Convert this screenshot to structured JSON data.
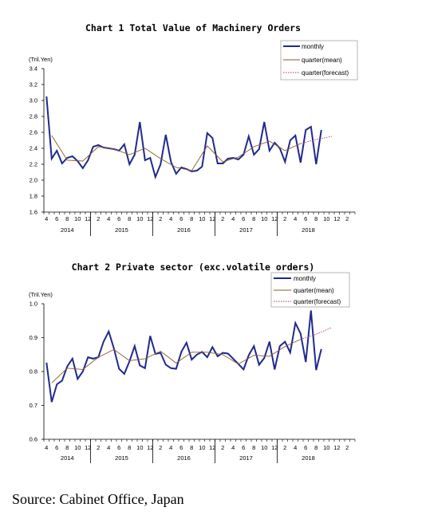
{
  "source": "Source: Cabinet Office, Japan",
  "colors": {
    "monthly": "#1f2a8c",
    "quarter_mean": "#8b5a2b",
    "quarter_forecast": "#b0306a"
  },
  "chart_data": [
    {
      "type": "line",
      "title": "Chart 1 Total Value of Machinery Orders",
      "ylabel": "(Tril.Yen)",
      "ylim": [
        1.6,
        3.4
      ],
      "yticks": [
        "1.6",
        "1.8",
        "2.0",
        "2.2",
        "2.4",
        "2.6",
        "2.8",
        "3.0",
        "3.2",
        "3.4"
      ],
      "month_ticks": [
        "4",
        "6",
        "8",
        "10",
        "12",
        "2",
        "4",
        "6",
        "8",
        "10",
        "12",
        "2",
        "4",
        "6",
        "8",
        "10",
        "12",
        "2",
        "4",
        "6",
        "8",
        "10",
        "12",
        "2",
        "4",
        "6",
        "8",
        "10",
        "12",
        "2"
      ],
      "year_labels": [
        "2014",
        "2015",
        "2016",
        "2017",
        "2018"
      ],
      "legend": [
        "monthly",
        "quarter(mean)",
        "quarter(forecast)"
      ],
      "series": [
        {
          "name": "monthly",
          "values": [
            3.05,
            2.27,
            2.37,
            2.21,
            2.28,
            2.3,
            2.24,
            2.15,
            2.25,
            2.42,
            2.44,
            2.41,
            2.4,
            2.39,
            2.37,
            2.45,
            2.2,
            2.32,
            2.73,
            2.25,
            2.28,
            2.04,
            2.2,
            2.57,
            2.23,
            2.08,
            2.16,
            2.14,
            2.11,
            2.12,
            2.17,
            2.59,
            2.53,
            2.21,
            2.21,
            2.27,
            2.28,
            2.26,
            2.32,
            2.55,
            2.32,
            2.39,
            2.73,
            2.37,
            2.47,
            2.4,
            2.23,
            2.5,
            2.56,
            2.22,
            2.63,
            2.67,
            2.2,
            2.63
          ]
        },
        {
          "name": "quarter(mean)",
          "x": [
            1,
            4,
            7,
            10,
            13,
            16,
            19,
            22,
            25,
            28,
            31,
            34,
            37,
            40,
            43,
            46,
            49
          ],
          "values": [
            2.56,
            2.25,
            2.24,
            2.42,
            2.39,
            2.32,
            2.4,
            2.27,
            2.16,
            2.12,
            2.43,
            2.23,
            2.29,
            2.42,
            2.49,
            2.37,
            2.46
          ]
        },
        {
          "name": "quarter(forecast)",
          "x": [
            49,
            52,
            55
          ],
          "values": [
            2.46,
            2.51,
            2.55
          ]
        }
      ]
    },
    {
      "type": "line",
      "title": "Chart 2 Private sector (exc.volatile orders)",
      "ylabel": "(Tril.Yen)",
      "ylim": [
        0.6,
        1.0
      ],
      "yticks": [
        "0.6",
        "0.7",
        "0.8",
        "0.9",
        "1.0"
      ],
      "month_ticks": [
        "4",
        "6",
        "8",
        "10",
        "12",
        "2",
        "4",
        "6",
        "8",
        "10",
        "12",
        "2",
        "4",
        "6",
        "8",
        "10",
        "12",
        "2",
        "4",
        "6",
        "8",
        "10",
        "12",
        "2",
        "4",
        "6",
        "8",
        "10",
        "12",
        "2"
      ],
      "year_labels": [
        "2014",
        "2015",
        "2016",
        "2017",
        "2018"
      ],
      "legend": [
        "monthly",
        "quarter(mean)",
        "quarter(forecast)"
      ],
      "series": [
        {
          "name": "monthly",
          "values": [
            0.826,
            0.71,
            0.762,
            0.773,
            0.815,
            0.838,
            0.778,
            0.8,
            0.842,
            0.838,
            0.842,
            0.888,
            0.918,
            0.868,
            0.808,
            0.793,
            0.83,
            0.875,
            0.818,
            0.81,
            0.905,
            0.852,
            0.855,
            0.82,
            0.81,
            0.808,
            0.858,
            0.885,
            0.835,
            0.85,
            0.858,
            0.842,
            0.872,
            0.845,
            0.855,
            0.853,
            0.838,
            0.822,
            0.806,
            0.848,
            0.875,
            0.82,
            0.84,
            0.888,
            0.806,
            0.875,
            0.888,
            0.856,
            0.943,
            0.912,
            0.828,
            0.98,
            0.804,
            0.866
          ]
        },
        {
          "name": "quarter(mean)",
          "x": [
            1,
            4,
            7,
            10,
            13,
            16,
            19,
            22,
            25,
            28,
            31,
            34,
            37,
            40,
            43,
            46,
            49
          ],
          "values": [
            0.766,
            0.81,
            0.806,
            0.842,
            0.865,
            0.832,
            0.838,
            0.86,
            0.825,
            0.857,
            0.857,
            0.85,
            0.822,
            0.848,
            0.845,
            0.874,
            0.895
          ]
        },
        {
          "name": "quarter(forecast)",
          "x": [
            49,
            52,
            55
          ],
          "values": [
            0.895,
            0.91,
            0.93
          ]
        }
      ]
    }
  ]
}
